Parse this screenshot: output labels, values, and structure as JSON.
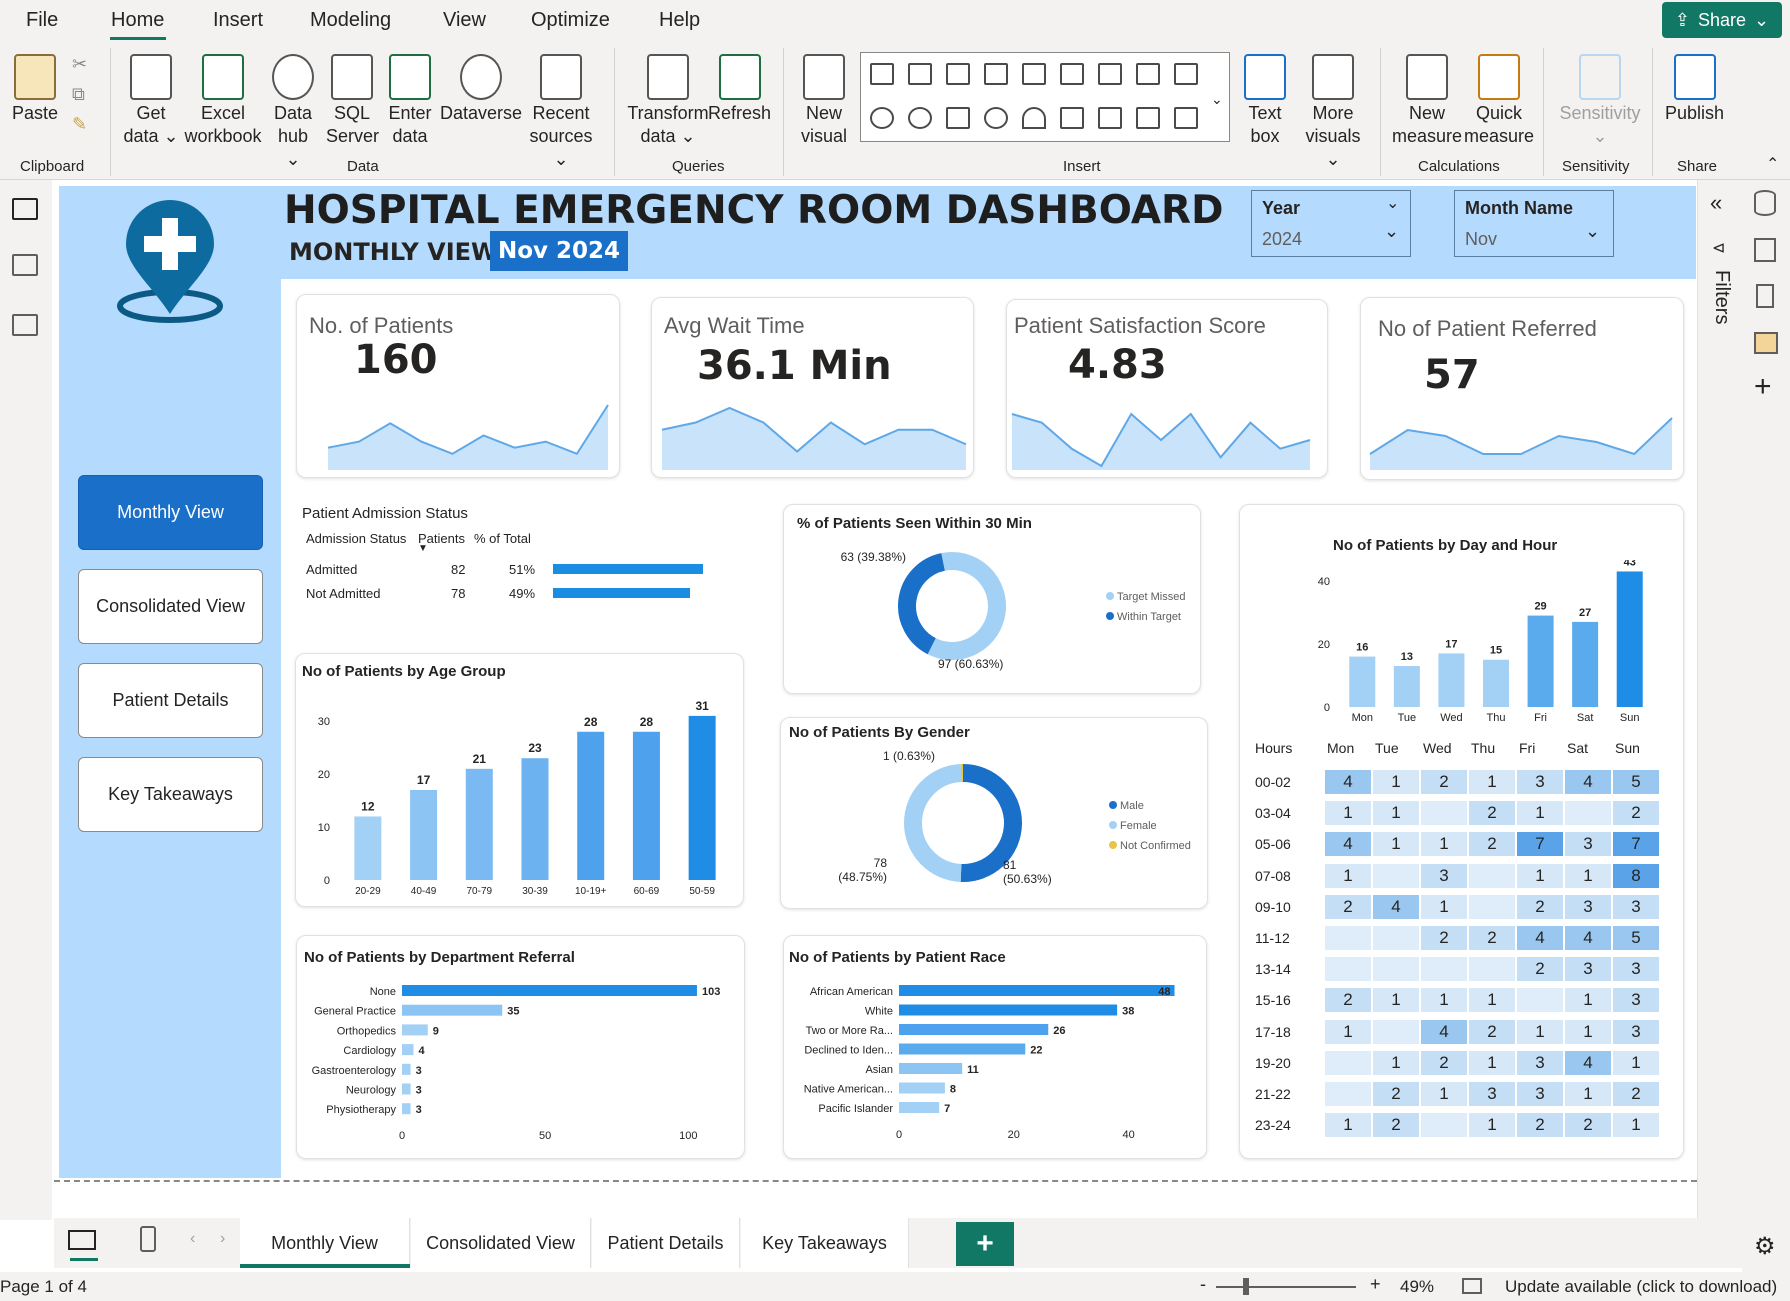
{
  "menu": {
    "items": [
      "File",
      "Home",
      "Insert",
      "Modeling",
      "View",
      "Optimize",
      "Help"
    ],
    "active": "Home",
    "share": "Share"
  },
  "ribbon": {
    "buttons": [
      {
        "id": "paste",
        "label": "Paste"
      },
      {
        "id": "get-data",
        "label": "Get data ⌄"
      },
      {
        "id": "excel",
        "label": "Excel workbook"
      },
      {
        "id": "data-hub",
        "label": "Data hub ⌄"
      },
      {
        "id": "sql",
        "label": "SQL Server"
      },
      {
        "id": "enter-data",
        "label": "Enter data"
      },
      {
        "id": "dataverse",
        "label": "Dataverse"
      },
      {
        "id": "recent",
        "label": "Recent sources ⌄"
      },
      {
        "id": "transform",
        "label": "Transform data ⌄"
      },
      {
        "id": "refresh",
        "label": "Refresh"
      },
      {
        "id": "new-visual",
        "label": "New visual"
      },
      {
        "id": "text-box",
        "label": "Text box"
      },
      {
        "id": "more-visuals",
        "label": "More visuals ⌄"
      },
      {
        "id": "new-measure",
        "label": "New measure"
      },
      {
        "id": "quick-measure",
        "label": "Quick measure"
      },
      {
        "id": "sensitivity",
        "label": "Sensitivity ⌄"
      },
      {
        "id": "publish",
        "label": "Publish"
      }
    ],
    "groups": [
      "Clipboard",
      "Data",
      "Queries",
      "Insert",
      "Calculations",
      "Sensitivity",
      "Share"
    ]
  },
  "dashboard": {
    "title": "HOSPITAL EMERGENCY ROOM DASHBOARD",
    "subtitle": "MONTHLY VIEW",
    "period": "Nov 2024",
    "slicers": [
      {
        "label": "Year",
        "value": "2024"
      },
      {
        "label": "Month Name",
        "value": "Nov"
      }
    ],
    "nav": [
      "Monthly View",
      "Consolidated View",
      "Patient Details",
      "Key Takeaways"
    ],
    "nav_active": "Monthly View",
    "kpis": [
      {
        "title": "No. of Patients",
        "value": "160",
        "spark": [
          3,
          4,
          7,
          4,
          2,
          5,
          3,
          4,
          2,
          10
        ]
      },
      {
        "title": "Avg Wait Time",
        "value": "36.1 Min",
        "spark": [
          5,
          6,
          8,
          6,
          2,
          6,
          3,
          5,
          5,
          3
        ]
      },
      {
        "title": "Patient Satisfaction Score",
        "value": "4.83",
        "spark": [
          6,
          5,
          2,
          0,
          6,
          3,
          6,
          1,
          5,
          2,
          3
        ]
      },
      {
        "title": "No of Patient Referred",
        "value": "57",
        "spark": [
          2,
          6,
          5,
          2,
          2,
          5,
          4,
          2,
          8
        ]
      }
    ],
    "admission": {
      "title": "Patient Admission Status",
      "headers": [
        "Admission Status",
        "Patients",
        "% of Total"
      ],
      "rows": [
        {
          "status": "Admitted",
          "patients": "82",
          "pct": "51%",
          "share": 0.51
        },
        {
          "status": "Not Admitted",
          "patients": "78",
          "pct": "49%",
          "share": 0.49
        }
      ]
    },
    "filters_label": "Filters"
  },
  "chart_data": [
    {
      "type": "bar",
      "title": "No of Patients by Age Group",
      "categories": [
        "20-29",
        "40-49",
        "70-79",
        "30-39",
        "10-19+",
        "60-69",
        "50-59"
      ],
      "values": [
        12,
        17,
        21,
        23,
        28,
        28,
        31
      ],
      "ylim": [
        0,
        34
      ],
      "yticks": [
        0,
        10,
        20,
        30
      ]
    },
    {
      "type": "pie",
      "title": "% of Patients Seen Within 30 Min",
      "labels": [
        "Target Missed",
        "Within Target"
      ],
      "values": [
        97,
        63
      ],
      "data_labels": [
        "97 (60.63%)",
        "63 (39.38%)"
      ],
      "colors": [
        "#a3d0f5",
        "#1a6fc9"
      ]
    },
    {
      "type": "pie",
      "title": "No of Patients By Gender",
      "labels": [
        "Male",
        "Female",
        "Not Confirmed"
      ],
      "values": [
        81,
        78,
        1
      ],
      "data_labels": [
        "81 (50.63%)",
        "78 (48.75%)",
        "1 (0.63%)"
      ],
      "colors": [
        "#1a6fc9",
        "#a3d0f5",
        "#e8c547"
      ]
    },
    {
      "type": "bar",
      "title": "No of Patients by Department Referral",
      "categories": [
        "None",
        "General Practice",
        "Orthopedics",
        "Cardiology",
        "Gastroenterology",
        "Neurology",
        "Physiotherapy"
      ],
      "values": [
        103,
        35,
        9,
        4,
        3,
        3,
        3
      ],
      "xticks": [
        0,
        50,
        100
      ],
      "xlim": [
        0,
        110
      ]
    },
    {
      "type": "bar",
      "title": "No of Patients by Patient Race",
      "categories": [
        "African American",
        "White",
        "Two or More Ra...",
        "Declined to Iden...",
        "Asian",
        "Native American...",
        "Pacific Islander"
      ],
      "values": [
        48,
        38,
        26,
        22,
        11,
        8,
        7
      ],
      "xticks": [
        0,
        20,
        40
      ],
      "xlim": [
        0,
        50
      ]
    },
    {
      "type": "bar",
      "title": "No of Patients by Day and Hour",
      "categories": [
        "Mon",
        "Tue",
        "Wed",
        "Thu",
        "Fri",
        "Sat",
        "Sun"
      ],
      "values": [
        16,
        13,
        17,
        15,
        29,
        27,
        43
      ],
      "yticks": [
        0,
        20,
        40
      ],
      "ylim": [
        0,
        46
      ]
    },
    {
      "type": "heatmap",
      "hours_label": "Hours",
      "columns": [
        "Mon",
        "Tue",
        "Wed",
        "Thu",
        "Fri",
        "Sat",
        "Sun"
      ],
      "rows": [
        "00-02",
        "03-04",
        "05-06",
        "07-08",
        "09-10",
        "11-12",
        "13-14",
        "15-16",
        "17-18",
        "19-20",
        "21-22",
        "23-24"
      ],
      "values": [
        [
          "4",
          "1",
          "2",
          "1",
          "3",
          "4",
          "5"
        ],
        [
          "1",
          "1",
          "",
          "2",
          "1",
          "",
          "2"
        ],
        [
          "4",
          "1",
          "1",
          "2",
          "7",
          "3",
          "7"
        ],
        [
          "1",
          "",
          "3",
          "",
          "1",
          "1",
          "8"
        ],
        [
          "2",
          "4",
          "1",
          "",
          "2",
          "3",
          "3"
        ],
        [
          "",
          "",
          "2",
          "2",
          "4",
          "4",
          "5"
        ],
        [
          "",
          "",
          "",
          "",
          "2",
          "3",
          "3"
        ],
        [
          "2",
          "1",
          "1",
          "1",
          "",
          "1",
          "3"
        ],
        [
          "1",
          "",
          "4",
          "2",
          "1",
          "1",
          "3"
        ],
        [
          "",
          "1",
          "2",
          "1",
          "3",
          "4",
          "1"
        ],
        [
          "",
          "2",
          "1",
          "3",
          "3",
          "1",
          "2"
        ],
        [
          "1",
          "2",
          "",
          "1",
          "2",
          "2",
          "1"
        ]
      ]
    }
  ],
  "tabs": {
    "items": [
      "Monthly View",
      "Consolidated View",
      "Patient Details",
      "Key Takeaways"
    ],
    "active": "Monthly View",
    "add": "+"
  },
  "status": {
    "page": "Page 1 of 4",
    "zoom": "49%",
    "update": "Update available (click to download)"
  }
}
